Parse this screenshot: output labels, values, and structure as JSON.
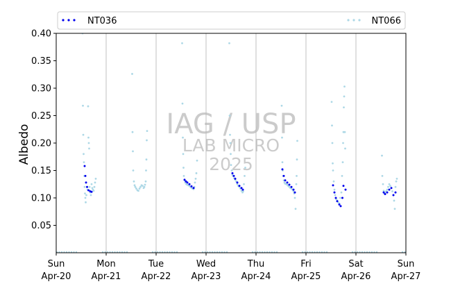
{
  "chart_data": {
    "type": "scatter",
    "title": "",
    "xlabel": "",
    "ylabel": "Albedo",
    "ylim": [
      0.0,
      0.4
    ],
    "xlim": [
      "2025-04-20",
      "2025-04-27"
    ],
    "yticks": [
      "0.05",
      "0.10",
      "0.15",
      "0.20",
      "0.25",
      "0.30",
      "0.35",
      "0.40"
    ],
    "xticks": [
      {
        "day": "Sun",
        "date": "Apr-20"
      },
      {
        "day": "Mon",
        "date": "Apr-21"
      },
      {
        "day": "Tue",
        "date": "Apr-22"
      },
      {
        "day": "Wed",
        "date": "Apr-23"
      },
      {
        "day": "Thu",
        "date": "Apr-24"
      },
      {
        "day": "Fri",
        "date": "Apr-25"
      },
      {
        "day": "Sat",
        "date": "Apr-26"
      },
      {
        "day": "Sun",
        "date": "Apr-27"
      }
    ],
    "grid": "vertical at day boundaries",
    "legend": {
      "placement": "top, spanning plot width",
      "entries": [
        "NT036",
        "NT066"
      ]
    },
    "watermark": [
      "IAG / USP",
      "LAB MICRO",
      "2025"
    ],
    "series": [
      {
        "name": "NT036",
        "color": "#0000ee",
        "points": [
          [
            "2025-04-20 13:40",
            0.158
          ],
          [
            "2025-04-20 14:00",
            0.14
          ],
          [
            "2025-04-20 14:20",
            0.128
          ],
          [
            "2025-04-20 14:50",
            0.12
          ],
          [
            "2025-04-20 15:30",
            0.114
          ],
          [
            "2025-04-20 16:20",
            0.112
          ],
          [
            "2025-04-20 17:00",
            0.111
          ],
          [
            "2025-04-22 13:40",
            0.133
          ],
          [
            "2025-04-22 14:20",
            0.13
          ],
          [
            "2025-04-22 15:00",
            0.128
          ],
          [
            "2025-04-22 16:00",
            0.125
          ],
          [
            "2025-04-22 17:00",
            0.121
          ],
          [
            "2025-04-22 18:00",
            0.118
          ],
          [
            "2025-04-23 12:40",
            0.145
          ],
          [
            "2025-04-23 13:20",
            0.14
          ],
          [
            "2025-04-23 14:00",
            0.135
          ],
          [
            "2025-04-23 15:00",
            0.128
          ],
          [
            "2025-04-23 16:00",
            0.122
          ],
          [
            "2025-04-23 17:00",
            0.118
          ],
          [
            "2025-04-23 17:40",
            0.115
          ],
          [
            "2025-04-24 12:40",
            0.152
          ],
          [
            "2025-04-24 13:20",
            0.14
          ],
          [
            "2025-04-24 14:00",
            0.132
          ],
          [
            "2025-04-24 15:00",
            0.128
          ],
          [
            "2025-04-24 16:00",
            0.124
          ],
          [
            "2025-04-24 17:00",
            0.12
          ],
          [
            "2025-04-24 18:00",
            0.115
          ],
          [
            "2025-04-24 18:40",
            0.11
          ],
          [
            "2025-04-25 13:00",
            0.123
          ],
          [
            "2025-04-25 13:40",
            0.11
          ],
          [
            "2025-04-25 14:20",
            0.1
          ],
          [
            "2025-04-25 15:00",
            0.094
          ],
          [
            "2025-04-25 16:00",
            0.088
          ],
          [
            "2025-04-25 16:40",
            0.085
          ],
          [
            "2025-04-25 17:30",
            0.1
          ],
          [
            "2025-04-25 18:00",
            0.122
          ],
          [
            "2025-04-25 19:00",
            0.115
          ],
          [
            "2025-04-26 13:20",
            0.11
          ],
          [
            "2025-04-26 14:00",
            0.107
          ],
          [
            "2025-04-26 15:00",
            0.11
          ],
          [
            "2025-04-26 16:00",
            0.115
          ],
          [
            "2025-04-26 17:00",
            0.118
          ],
          [
            "2025-04-26 18:00",
            0.105
          ],
          [
            "2025-04-26 19:00",
            0.11
          ]
        ]
      },
      {
        "name": "NT066",
        "color": "#add8e6",
        "points": [
          [
            "2025-04-20 12:40",
            0.4
          ],
          [
            "2025-04-20 12:50",
            0.268
          ],
          [
            "2025-04-20 13:00",
            0.215
          ],
          [
            "2025-04-20 13:10",
            0.18
          ],
          [
            "2025-04-20 13:20",
            0.165
          ],
          [
            "2025-04-20 13:30",
            0.14
          ],
          [
            "2025-04-20 13:40",
            0.12
          ],
          [
            "2025-04-20 13:50",
            0.108
          ],
          [
            "2025-04-20 14:00",
            0.1
          ],
          [
            "2025-04-20 14:10",
            0.092
          ],
          [
            "2025-04-20 14:30",
            0.105
          ],
          [
            "2025-04-20 15:00",
            0.115
          ],
          [
            "2025-04-20 15:20",
            0.267
          ],
          [
            "2025-04-20 15:30",
            0.21
          ],
          [
            "2025-04-20 15:40",
            0.2
          ],
          [
            "2025-04-20 15:50",
            0.19
          ],
          [
            "2025-04-20 16:00",
            0.12
          ],
          [
            "2025-04-20 16:20",
            0.11
          ],
          [
            "2025-04-20 16:40",
            0.105
          ],
          [
            "2025-04-20 17:00",
            0.125
          ],
          [
            "2025-04-20 17:20",
            0.118
          ],
          [
            "2025-04-20 17:40",
            0.115
          ],
          [
            "2025-04-20 18:00",
            0.113
          ],
          [
            "2025-04-20 18:20",
            0.12
          ],
          [
            "2025-04-20 18:40",
            0.128
          ],
          [
            "2025-04-20 19:00",
            0.135
          ],
          [
            "2025-04-21 12:30",
            0.326
          ],
          [
            "2025-04-21 12:40",
            0.22
          ],
          [
            "2025-04-21 12:50",
            0.185
          ],
          [
            "2025-04-21 13:00",
            0.15
          ],
          [
            "2025-04-21 13:20",
            0.13
          ],
          [
            "2025-04-21 13:40",
            0.123
          ],
          [
            "2025-04-21 14:00",
            0.12
          ],
          [
            "2025-04-21 14:30",
            0.117
          ],
          [
            "2025-04-21 15:00",
            0.114
          ],
          [
            "2025-04-21 15:30",
            0.113
          ],
          [
            "2025-04-21 16:00",
            0.117
          ],
          [
            "2025-04-21 16:30",
            0.12
          ],
          [
            "2025-04-21 17:00",
            0.123
          ],
          [
            "2025-04-21 17:30",
            0.122
          ],
          [
            "2025-04-21 18:00",
            0.118
          ],
          [
            "2025-04-21 18:20",
            0.12
          ],
          [
            "2025-04-21 18:40",
            0.124
          ],
          [
            "2025-04-21 19:00",
            0.13
          ],
          [
            "2025-04-21 19:10",
            0.15
          ],
          [
            "2025-04-21 19:20",
            0.17
          ],
          [
            "2025-04-21 19:30",
            0.205
          ],
          [
            "2025-04-21 19:40",
            0.222
          ],
          [
            "2025-04-22 12:30",
            0.382
          ],
          [
            "2025-04-22 12:40",
            0.272
          ],
          [
            "2025-04-22 12:50",
            0.21
          ],
          [
            "2025-04-22 13:00",
            0.18
          ],
          [
            "2025-04-22 13:10",
            0.155
          ],
          [
            "2025-04-22 13:20",
            0.14
          ],
          [
            "2025-04-22 13:40",
            0.132
          ],
          [
            "2025-04-22 14:00",
            0.128
          ],
          [
            "2025-04-22 14:30",
            0.125
          ],
          [
            "2025-04-22 15:00",
            0.124
          ],
          [
            "2025-04-22 15:30",
            0.123
          ],
          [
            "2025-04-22 16:00",
            0.122
          ],
          [
            "2025-04-22 16:30",
            0.12
          ],
          [
            "2025-04-22 17:00",
            0.118
          ],
          [
            "2025-04-22 17:30",
            0.117
          ],
          [
            "2025-04-22 18:00",
            0.116
          ],
          [
            "2025-04-22 18:20",
            0.12
          ],
          [
            "2025-04-22 18:40",
            0.128
          ],
          [
            "2025-04-22 19:00",
            0.135
          ],
          [
            "2025-04-22 19:20",
            0.145
          ],
          [
            "2025-04-22 19:40",
            0.168
          ],
          [
            "2025-04-23 11:10",
            0.382
          ],
          [
            "2025-04-23 11:20",
            0.25
          ],
          [
            "2025-04-23 11:30",
            0.215
          ],
          [
            "2025-04-23 11:40",
            0.2
          ],
          [
            "2025-04-23 11:50",
            0.18
          ],
          [
            "2025-04-23 12:00",
            0.16
          ],
          [
            "2025-04-23 12:20",
            0.15
          ],
          [
            "2025-04-23 12:40",
            0.142
          ],
          [
            "2025-04-23 13:00",
            0.14
          ],
          [
            "2025-04-23 13:30",
            0.136
          ],
          [
            "2025-04-23 14:00",
            0.133
          ],
          [
            "2025-04-23 14:30",
            0.13
          ],
          [
            "2025-04-23 15:00",
            0.125
          ],
          [
            "2025-04-23 15:30",
            0.122
          ],
          [
            "2025-04-23 16:00",
            0.12
          ],
          [
            "2025-04-23 16:30",
            0.117
          ],
          [
            "2025-04-23 17:00",
            0.113
          ],
          [
            "2025-04-23 17:30",
            0.11
          ],
          [
            "2025-04-23 17:50",
            0.112
          ],
          [
            "2025-04-23 18:10",
            0.125
          ],
          [
            "2025-04-23 18:30",
            0.14
          ],
          [
            "2025-04-23 18:50",
            0.155
          ],
          [
            "2025-04-24 12:20",
            0.268
          ],
          [
            "2025-04-24 12:30",
            0.21
          ],
          [
            "2025-04-24 12:40",
            0.165
          ],
          [
            "2025-04-24 12:50",
            0.15
          ],
          [
            "2025-04-24 13:00",
            0.14
          ],
          [
            "2025-04-24 13:20",
            0.132
          ],
          [
            "2025-04-24 13:40",
            0.128
          ],
          [
            "2025-04-24 14:00",
            0.126
          ],
          [
            "2025-04-24 14:30",
            0.125
          ],
          [
            "2025-04-24 15:00",
            0.124
          ],
          [
            "2025-04-24 15:30",
            0.122
          ],
          [
            "2025-04-24 16:00",
            0.12
          ],
          [
            "2025-04-24 16:30",
            0.118
          ],
          [
            "2025-04-24 17:00",
            0.117
          ],
          [
            "2025-04-24 17:30",
            0.115
          ],
          [
            "2025-04-24 18:00",
            0.112
          ],
          [
            "2025-04-24 18:20",
            0.108
          ],
          [
            "2025-04-24 18:40",
            0.1
          ],
          [
            "2025-04-24 19:00",
            0.08
          ],
          [
            "2025-04-24 19:20",
            0.125
          ],
          [
            "2025-04-24 19:30",
            0.14
          ],
          [
            "2025-04-24 19:40",
            0.17
          ],
          [
            "2025-04-24 19:50",
            0.204
          ],
          [
            "2025-04-25 12:20",
            0.275
          ],
          [
            "2025-04-25 12:30",
            0.232
          ],
          [
            "2025-04-25 12:40",
            0.2
          ],
          [
            "2025-04-25 12:50",
            0.163
          ],
          [
            "2025-04-25 13:00",
            0.15
          ],
          [
            "2025-04-25 13:20",
            0.13
          ],
          [
            "2025-04-25 13:40",
            0.115
          ],
          [
            "2025-04-25 14:00",
            0.105
          ],
          [
            "2025-04-25 14:30",
            0.098
          ],
          [
            "2025-04-25 15:00",
            0.095
          ],
          [
            "2025-04-25 15:30",
            0.092
          ],
          [
            "2025-04-25 16:00",
            0.09
          ],
          [
            "2025-04-25 16:30",
            0.1
          ],
          [
            "2025-04-25 17:00",
            0.11
          ],
          [
            "2025-04-25 17:20",
            0.14
          ],
          [
            "2025-04-25 17:40",
            0.165
          ],
          [
            "2025-04-25 17:50",
            0.2
          ],
          [
            "2025-04-25 18:00",
            0.22
          ],
          [
            "2025-04-25 18:10",
            0.265
          ],
          [
            "2025-04-25 18:20",
            0.285
          ],
          [
            "2025-04-25 18:30",
            0.303
          ],
          [
            "2025-04-25 18:40",
            0.22
          ],
          [
            "2025-04-25 18:50",
            0.19
          ],
          [
            "2025-04-26 12:30",
            0.177
          ],
          [
            "2025-04-26 12:40",
            0.14
          ],
          [
            "2025-04-26 13:00",
            0.125
          ],
          [
            "2025-04-26 13:20",
            0.113
          ],
          [
            "2025-04-26 13:40",
            0.108
          ],
          [
            "2025-04-26 14:00",
            0.11
          ],
          [
            "2025-04-26 14:30",
            0.112
          ],
          [
            "2025-04-26 15:00",
            0.115
          ],
          [
            "2025-04-26 15:30",
            0.12
          ],
          [
            "2025-04-26 16:00",
            0.125
          ],
          [
            "2025-04-26 16:30",
            0.122
          ],
          [
            "2025-04-26 17:00",
            0.118
          ],
          [
            "2025-04-26 17:30",
            0.112
          ],
          [
            "2025-04-26 18:00",
            0.105
          ],
          [
            "2025-04-26 18:20",
            0.095
          ],
          [
            "2025-04-26 18:40",
            0.08
          ],
          [
            "2025-04-26 19:00",
            0.12
          ],
          [
            "2025-04-26 19:20",
            0.13
          ],
          [
            "2025-04-26 19:40",
            0.135
          ]
        ]
      }
    ],
    "baseline": {
      "y": 0.0,
      "color": "#add8e6",
      "night_segments": [
        [
          "2025-04-20 00:00",
          "2025-04-20 10:30"
        ],
        [
          "2025-04-20 22:00",
          "2025-04-21 10:30"
        ],
        [
          "2025-04-21 22:00",
          "2025-04-22 10:30"
        ],
        [
          "2025-04-22 22:00",
          "2025-04-23 10:30"
        ],
        [
          "2025-04-23 22:00",
          "2025-04-24 10:30"
        ],
        [
          "2025-04-24 22:00",
          "2025-04-25 10:30"
        ],
        [
          "2025-04-25 22:00",
          "2025-04-26 10:30"
        ],
        [
          "2025-04-26 22:00",
          "2025-04-27 00:00"
        ]
      ]
    }
  }
}
